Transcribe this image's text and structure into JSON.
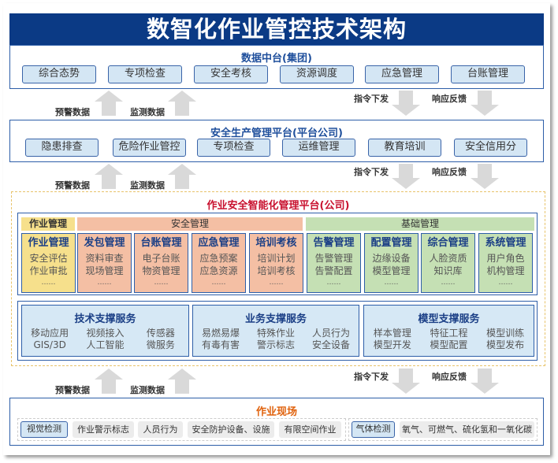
{
  "title": "数智化作业管控技术架构",
  "layer1": {
    "title": "数据中台(集团)",
    "items": [
      "综合态势",
      "专项检查",
      "安全考核",
      "资源调度",
      "应急管理",
      "台账管理"
    ]
  },
  "flow": {
    "up_left": "预警数据",
    "up_right": "监测数据",
    "down_left": "指令下发",
    "down_right": "响应反馈"
  },
  "layer2": {
    "title": "安全生产管理平台(平台公司)",
    "items": [
      "隐患排查",
      "危险作业管控",
      "专项检查",
      "运维管理",
      "教育培训",
      "安全信用分"
    ]
  },
  "layer3": {
    "title": "作业安全智能化管理平台(公司)",
    "groups": [
      "作业管理",
      "安全管理",
      "基础管理"
    ],
    "cards": [
      {
        "title": "作业管理",
        "lines": [
          "安全评估",
          "作业审批"
        ],
        "more": "……"
      },
      {
        "title": "发包管理",
        "lines": [
          "资料审查",
          "现场管理"
        ],
        "more": "……"
      },
      {
        "title": "台账管理",
        "lines": [
          "电子台账",
          "物资管理"
        ],
        "more": "……"
      },
      {
        "title": "应急管理",
        "lines": [
          "应急预案",
          "应急资源"
        ],
        "more": "……"
      },
      {
        "title": "培训考核",
        "lines": [
          "培训计划",
          "培训考核"
        ],
        "more": "……"
      },
      {
        "title": "告警管理",
        "lines": [
          "告警管理",
          "告警配置"
        ],
        "more": "……"
      },
      {
        "title": "配置管理",
        "lines": [
          "边缘设备",
          "模型管理"
        ],
        "more": "……"
      },
      {
        "title": "综合管理",
        "lines": [
          "人脸资质",
          "知识库"
        ],
        "more": "……"
      },
      {
        "title": "系统管理",
        "lines": [
          "用户角色",
          "机构管理"
        ],
        "more": "……"
      }
    ],
    "services": [
      {
        "title": "技术支撑服务",
        "items": [
          "移动应用",
          "视频接入",
          "传感器",
          "GIS/3D",
          "人工智能",
          "微服务"
        ]
      },
      {
        "title": "业务支撑服务",
        "items": [
          "易燃易爆",
          "特殊作业",
          "人员行为",
          "有毒有害",
          "警示标志",
          "安全设备"
        ]
      },
      {
        "title": "模型支撑服务",
        "items": [
          "样本管理",
          "特征工程",
          "模型训练",
          "模型开发",
          "模型配置",
          "模型发布"
        ]
      }
    ]
  },
  "layer4": {
    "title": "作业现场",
    "vision": {
      "label": "视觉检测",
      "items": [
        "作业警示标志",
        "人员行为",
        "安全防护设备、设施",
        "有限空间作业"
      ]
    },
    "gas": {
      "label": "气体检测",
      "items": [
        "氧气、可燃气、硫化氢和一氧化碳"
      ]
    }
  },
  "colors": {
    "banner": "#0b3a85",
    "border": "#2d5ea8",
    "button_fill": "#d4e6f4",
    "yellow": "#f6e08c",
    "salmon": "#f4bfa4",
    "green": "#c5e0b4",
    "platform_title": "#c8102e",
    "site_title": "#e0620d",
    "arrow": "#d9d9d9"
  }
}
